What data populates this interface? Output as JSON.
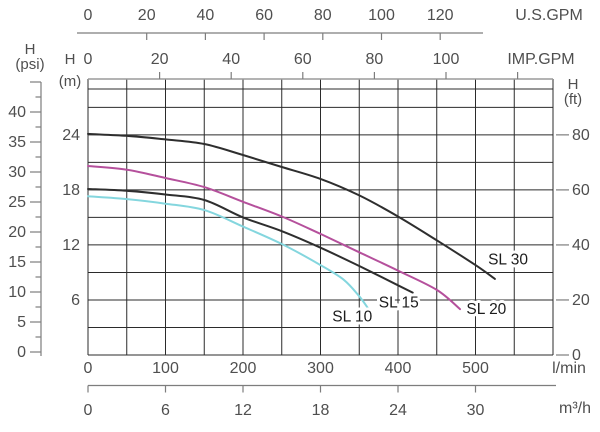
{
  "chart_data": {
    "type": "line",
    "description": "Pump head vs flow performance curves",
    "colors": {
      "grid": "#2b2b2b",
      "aux_line": "#7d7d7d",
      "top_border": "#9a9a9a",
      "text": "#4f4f4f",
      "curve_label_text": "#1c1c1c"
    },
    "axes": {
      "top_outer": {
        "unit": "U.S.GPM",
        "labels": [
          0,
          20,
          40,
          60,
          80,
          100,
          120
        ],
        "tick_marks": [
          20,
          40,
          60,
          80,
          100,
          120
        ]
      },
      "top_inner": {
        "unit": "IMP.GPM",
        "labels": [
          0,
          20,
          40,
          60,
          80,
          100
        ],
        "tick_marks": [
          20,
          40,
          60,
          80,
          100,
          120
        ]
      },
      "bottom_inner": {
        "unit": "l/min",
        "labels": [
          0,
          100,
          200,
          300,
          400,
          500
        ]
      },
      "bottom_outer": {
        "unit": "m³/h",
        "labels": [
          0,
          6,
          12,
          18,
          24,
          30
        ]
      },
      "left_outer": {
        "unit_line1": "H",
        "unit_line2": "(psi)",
        "labels": [
          0,
          5,
          10,
          15,
          20,
          25,
          30,
          35,
          40
        ],
        "major_tick_step": 5,
        "minor_tick_step": 2.5,
        "top_unlabeled_tick": 45
      },
      "left_inner": {
        "unit_line1": "H",
        "unit_line2": "(m)",
        "labels": [
          6,
          12,
          18,
          24
        ]
      },
      "right": {
        "unit_line1": "H",
        "unit_line2": "(ft)",
        "labels": [
          0,
          20,
          40,
          60,
          80
        ]
      }
    },
    "grid": {
      "x_max_lmin": 600,
      "x_step_lmin": 50,
      "y_step_m": 3,
      "y_max_gridline_m": 27,
      "y_top_border_m": 29
    },
    "series": [
      {
        "name": "SL 30",
        "color": "#2e2e2e",
        "points_lmin_m": [
          [
            0,
            24.1
          ],
          [
            50,
            23.9
          ],
          [
            100,
            23.5
          ],
          [
            150,
            23.0
          ],
          [
            200,
            21.8
          ],
          [
            250,
            20.5
          ],
          [
            300,
            19.2
          ],
          [
            350,
            17.4
          ],
          [
            400,
            15.1
          ],
          [
            450,
            12.5
          ],
          [
            500,
            9.8
          ],
          [
            525,
            8.3
          ]
        ],
        "label_pos_lmin_m": [
          542,
          10.4
        ]
      },
      {
        "name": "SL 20",
        "color": "#b5509c",
        "points_lmin_m": [
          [
            0,
            20.6
          ],
          [
            50,
            20.2
          ],
          [
            100,
            19.3
          ],
          [
            150,
            18.3
          ],
          [
            200,
            16.7
          ],
          [
            250,
            15.1
          ],
          [
            300,
            13.2
          ],
          [
            350,
            11.2
          ],
          [
            400,
            9.2
          ],
          [
            450,
            7.1
          ],
          [
            480,
            5.0
          ]
        ],
        "label_pos_lmin_m": [
          514,
          5.0
        ]
      },
      {
        "name": "SL 15",
        "color": "#2e2e2e",
        "points_lmin_m": [
          [
            0,
            18.1
          ],
          [
            50,
            17.9
          ],
          [
            100,
            17.5
          ],
          [
            150,
            16.9
          ],
          [
            200,
            15.0
          ],
          [
            250,
            13.5
          ],
          [
            300,
            11.7
          ],
          [
            350,
            9.7
          ],
          [
            400,
            7.6
          ],
          [
            419,
            6.8
          ]
        ],
        "label_pos_lmin_m": [
          401,
          5.7
        ]
      },
      {
        "name": "SL 10",
        "color": "#84d6de",
        "points_lmin_m": [
          [
            0,
            17.3
          ],
          [
            50,
            17.0
          ],
          [
            100,
            16.5
          ],
          [
            150,
            15.8
          ],
          [
            200,
            14.0
          ],
          [
            250,
            12.1
          ],
          [
            300,
            9.8
          ],
          [
            330,
            8.2
          ],
          [
            350,
            6.4
          ],
          [
            363,
            4.9
          ]
        ],
        "label_pos_lmin_m": [
          341,
          4.2
        ]
      }
    ]
  }
}
